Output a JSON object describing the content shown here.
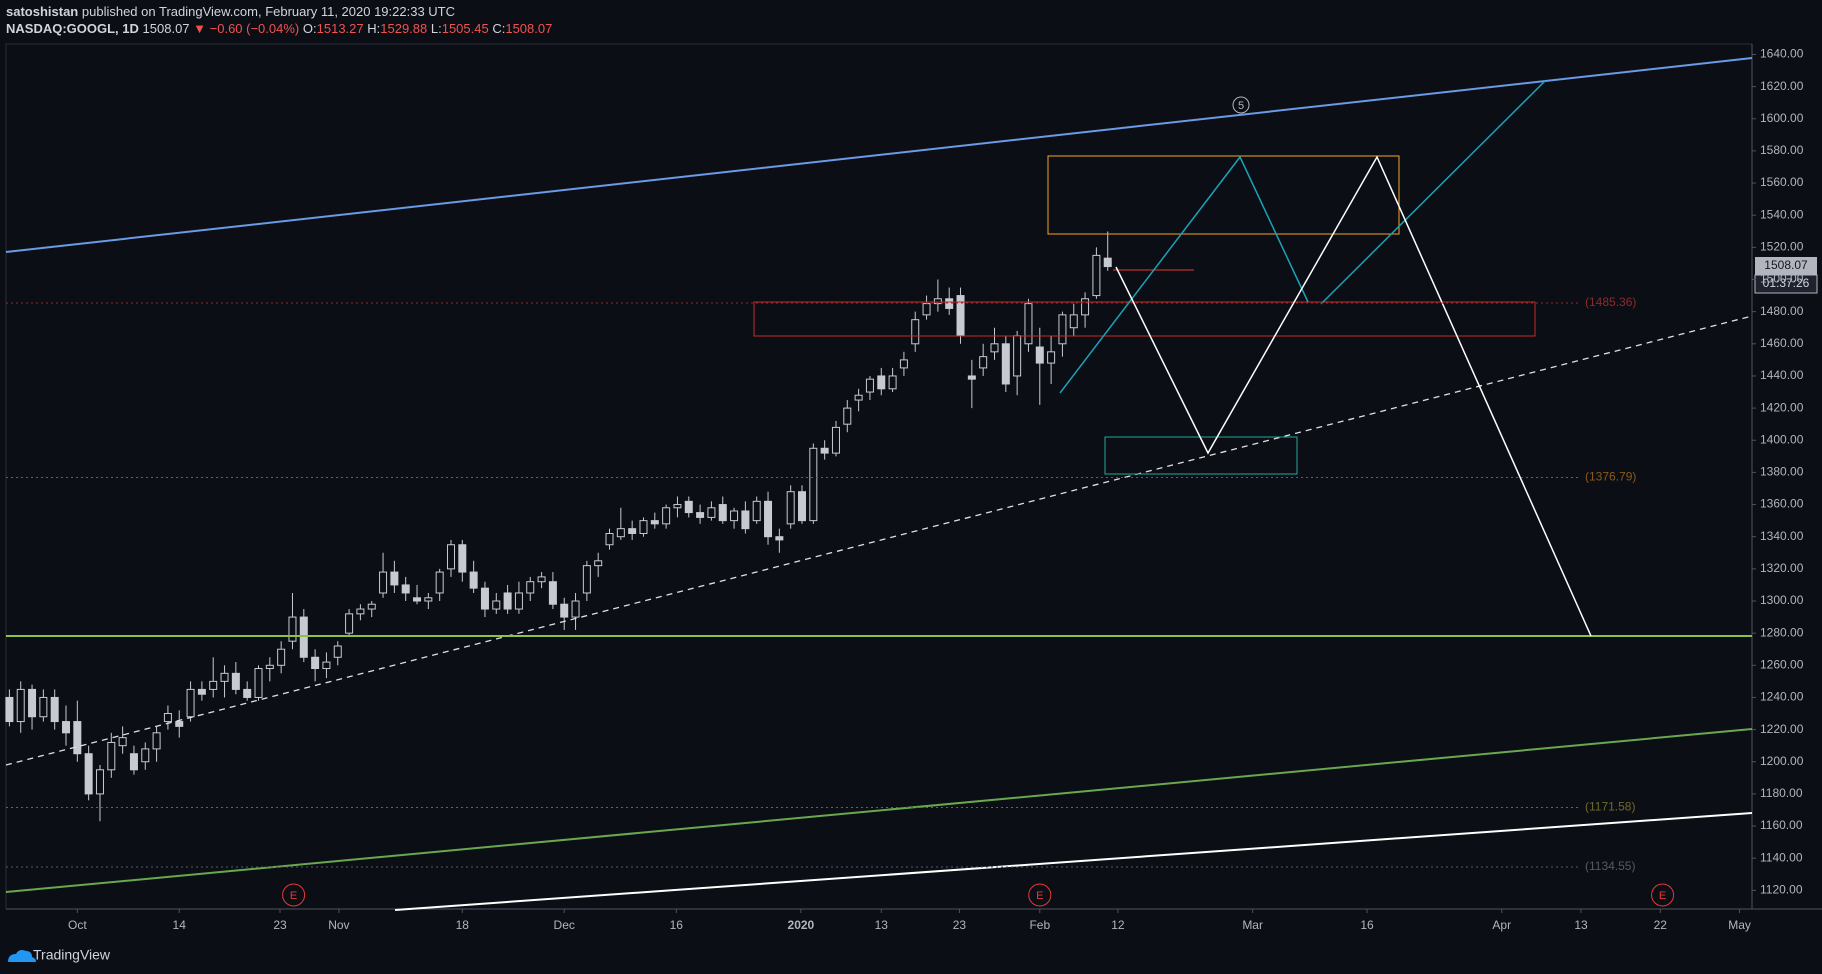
{
  "header": {
    "author": "satoshistan",
    "published": "published on TradingView.com, February 11, 2020 19:22:33 UTC",
    "symbol": "NASDAQ:GOOGL, 1D",
    "change": "▼ −0.60 (−0.04%)",
    "o": "O:",
    "h": "H:",
    "l": "L:",
    "c": "C:"
  },
  "footer": {
    "brand": "TradingView"
  },
  "chart_data": {
    "type": "candlestick",
    "color": "#c8cad2",
    "xlim": [
      -0.3,
      153.9
    ],
    "ylim": [
      1108.4,
      1646.5
    ],
    "grid": false,
    "xticks": [
      {
        "value": 6,
        "label": "Oct"
      },
      {
        "value": 15,
        "label": "14"
      },
      {
        "value": 23.9,
        "label": "23"
      },
      {
        "value": 29.1,
        "label": "Nov"
      },
      {
        "value": 40,
        "label": "18"
      },
      {
        "value": 49,
        "label": "Dec"
      },
      {
        "value": 58.9,
        "label": "16"
      },
      {
        "value": 69.9,
        "label": "2020"
      },
      {
        "value": 77,
        "label": "13"
      },
      {
        "value": 83.9,
        "label": "23"
      },
      {
        "value": 91,
        "label": "Feb"
      },
      {
        "value": 97.9,
        "label": "12"
      },
      {
        "value": 109.8,
        "label": "Mar"
      },
      {
        "value": 119.9,
        "label": "16"
      },
      {
        "value": 131.8,
        "label": "Apr"
      },
      {
        "value": 138.8,
        "label": "13"
      },
      {
        "value": 145.8,
        "label": "22"
      },
      {
        "value": 152.8,
        "label": "May"
      }
    ],
    "yticks": [
      {
        "value": 1120,
        "label": "1120.00"
      },
      {
        "value": 1140,
        "label": "1140.00"
      },
      {
        "value": 1160,
        "label": "1160.00"
      },
      {
        "value": 1180,
        "label": "1180.00"
      },
      {
        "value": 1200,
        "label": "1200.00"
      },
      {
        "value": 1220,
        "label": "1220.00"
      },
      {
        "value": 1240,
        "label": "1240.00"
      },
      {
        "value": 1260,
        "label": "1260.00"
      },
      {
        "value": 1280,
        "label": "1280.00"
      },
      {
        "value": 1300,
        "label": "1300.00"
      },
      {
        "value": 1320,
        "label": "1320.00"
      },
      {
        "value": 1340,
        "label": "1340.00"
      },
      {
        "value": 1360,
        "label": "1360.00"
      },
      {
        "value": 1380,
        "label": "1380.00"
      },
      {
        "value": 1400,
        "label": "1400.00"
      },
      {
        "value": 1420,
        "label": "1420.00"
      },
      {
        "value": 1440,
        "label": "1440.00"
      },
      {
        "value": 1460,
        "label": "1460.00"
      },
      {
        "value": 1480,
        "label": "1480.00"
      },
      {
        "value": 1500,
        "label": "1500.00"
      },
      {
        "value": 1520,
        "label": "1520.00"
      },
      {
        "value": 1540,
        "label": "1540.00"
      },
      {
        "value": 1560,
        "label": "1560.00"
      },
      {
        "value": 1580,
        "label": "1580.00"
      },
      {
        "value": 1600,
        "label": "1600.00"
      },
      {
        "value": 1620,
        "label": "1620.00"
      },
      {
        "value": 1640,
        "label": "1640.00"
      }
    ],
    "levels": [
      {
        "value": 1485.36,
        "label": "(1485.36)",
        "color": "#8e2a2a"
      },
      {
        "value": 1376.79,
        "label": "(1376.79)",
        "color": "#8a5a1a"
      },
      {
        "value": 1171.58,
        "label": "(1171.58)",
        "color": "#6e6a2a"
      },
      {
        "value": 1134.55,
        "label": "(1134.55)",
        "color": "#555a66"
      }
    ],
    "earnings": [
      {
        "x": 25.1,
        "label": "E"
      },
      {
        "x": 91,
        "label": "E"
      },
      {
        "x": 146,
        "label": "E"
      }
    ],
    "wave_label": "5",
    "countdown": "01:37:26",
    "candles": [
      [
        1240,
        1245,
        1222,
        1225
      ],
      [
        1225,
        1250,
        1218,
        1245
      ],
      [
        1245,
        1248,
        1220,
        1228
      ],
      [
        1228,
        1245,
        1225,
        1240
      ],
      [
        1240,
        1245,
        1220,
        1225
      ],
      [
        1225,
        1235,
        1210,
        1218
      ],
      [
        1225,
        1238,
        1200,
        1205
      ],
      [
        1205,
        1210,
        1176,
        1180
      ],
      [
        1180,
        1198,
        1163,
        1195
      ],
      [
        1195,
        1218,
        1190,
        1212
      ],
      [
        1210,
        1222,
        1205,
        1215
      ],
      [
        1205,
        1210,
        1192,
        1195
      ],
      [
        1200,
        1212,
        1195,
        1208
      ],
      [
        1208,
        1222,
        1200,
        1218
      ],
      [
        1225,
        1235,
        1220,
        1230
      ],
      [
        1225,
        1232,
        1215,
        1222
      ],
      [
        1228,
        1250,
        1225,
        1245
      ],
      [
        1245,
        1250,
        1238,
        1242
      ],
      [
        1245,
        1265,
        1240,
        1250
      ],
      [
        1250,
        1260,
        1240,
        1255
      ],
      [
        1255,
        1262,
        1242,
        1245
      ],
      [
        1245,
        1250,
        1238,
        1240
      ],
      [
        1240,
        1260,
        1238,
        1258
      ],
      [
        1258,
        1265,
        1250,
        1260
      ],
      [
        1260,
        1275,
        1255,
        1270
      ],
      [
        1275,
        1305,
        1270,
        1290
      ],
      [
        1290,
        1295,
        1262,
        1265
      ],
      [
        1265,
        1270,
        1250,
        1258
      ],
      [
        1258,
        1268,
        1252,
        1262
      ],
      [
        1265,
        1275,
        1260,
        1272
      ],
      [
        1280,
        1295,
        1278,
        1292
      ],
      [
        1292,
        1298,
        1288,
        1295
      ],
      [
        1295,
        1300,
        1290,
        1298
      ],
      [
        1305,
        1330,
        1302,
        1318
      ],
      [
        1318,
        1325,
        1305,
        1310
      ],
      [
        1310,
        1315,
        1300,
        1305
      ],
      [
        1302,
        1310,
        1298,
        1300
      ],
      [
        1300,
        1305,
        1295,
        1302
      ],
      [
        1305,
        1320,
        1300,
        1318
      ],
      [
        1320,
        1338,
        1315,
        1335
      ],
      [
        1335,
        1338,
        1312,
        1318
      ],
      [
        1318,
        1325,
        1305,
        1308
      ],
      [
        1308,
        1312,
        1290,
        1295
      ],
      [
        1295,
        1305,
        1292,
        1300
      ],
      [
        1305,
        1310,
        1292,
        1295
      ],
      [
        1295,
        1312,
        1292,
        1305
      ],
      [
        1305,
        1315,
        1300,
        1312
      ],
      [
        1312,
        1318,
        1308,
        1315
      ],
      [
        1312,
        1318,
        1295,
        1298
      ],
      [
        1298,
        1302,
        1282,
        1290
      ],
      [
        1290,
        1305,
        1282,
        1300
      ],
      [
        1305,
        1325,
        1300,
        1322
      ],
      [
        1322,
        1330,
        1315,
        1325
      ],
      [
        1335,
        1345,
        1332,
        1342
      ],
      [
        1340,
        1358,
        1338,
        1345
      ],
      [
        1345,
        1350,
        1338,
        1342
      ],
      [
        1342,
        1352,
        1340,
        1350
      ],
      [
        1350,
        1355,
        1345,
        1348
      ],
      [
        1348,
        1360,
        1345,
        1358
      ],
      [
        1358,
        1365,
        1352,
        1360
      ],
      [
        1362,
        1365,
        1352,
        1355
      ],
      [
        1355,
        1360,
        1348,
        1352
      ],
      [
        1352,
        1362,
        1350,
        1358
      ],
      [
        1360,
        1365,
        1348,
        1350
      ],
      [
        1350,
        1358,
        1345,
        1356
      ],
      [
        1356,
        1362,
        1342,
        1345
      ],
      [
        1350,
        1365,
        1348,
        1362
      ],
      [
        1362,
        1368,
        1335,
        1340
      ],
      [
        1340,
        1345,
        1330,
        1338
      ],
      [
        1348,
        1372,
        1345,
        1368
      ],
      [
        1368,
        1372,
        1348,
        1350
      ],
      [
        1350,
        1398,
        1348,
        1395
      ],
      [
        1395,
        1400,
        1388,
        1392
      ],
      [
        1392,
        1412,
        1390,
        1408
      ],
      [
        1410,
        1425,
        1405,
        1420
      ],
      [
        1425,
        1432,
        1418,
        1428
      ],
      [
        1430,
        1440,
        1425,
        1438
      ],
      [
        1440,
        1445,
        1428,
        1432
      ],
      [
        1432,
        1445,
        1430,
        1440
      ],
      [
        1445,
        1455,
        1440,
        1450
      ],
      [
        1460,
        1480,
        1455,
        1475
      ],
      [
        1478,
        1490,
        1475,
        1485
      ],
      [
        1485,
        1500,
        1480,
        1488
      ],
      [
        1488,
        1495,
        1478,
        1482
      ],
      [
        1490,
        1495,
        1460,
        1465
      ],
      [
        1440,
        1450,
        1420,
        1438
      ],
      [
        1445,
        1460,
        1440,
        1452
      ],
      [
        1455,
        1470,
        1450,
        1460
      ],
      [
        1460,
        1465,
        1430,
        1435
      ],
      [
        1440,
        1468,
        1428,
        1465
      ],
      [
        1460,
        1488,
        1455,
        1485
      ],
      [
        1458,
        1470,
        1422,
        1448
      ],
      [
        1448,
        1465,
        1435,
        1455
      ],
      [
        1460,
        1480,
        1452,
        1478
      ],
      [
        1470,
        1485,
        1465,
        1478
      ],
      [
        1478,
        1492,
        1470,
        1488
      ],
      [
        1490,
        1520,
        1488,
        1515
      ],
      [
        1513.27,
        1529.88,
        1505.45,
        1508.07
      ]
    ]
  }
}
